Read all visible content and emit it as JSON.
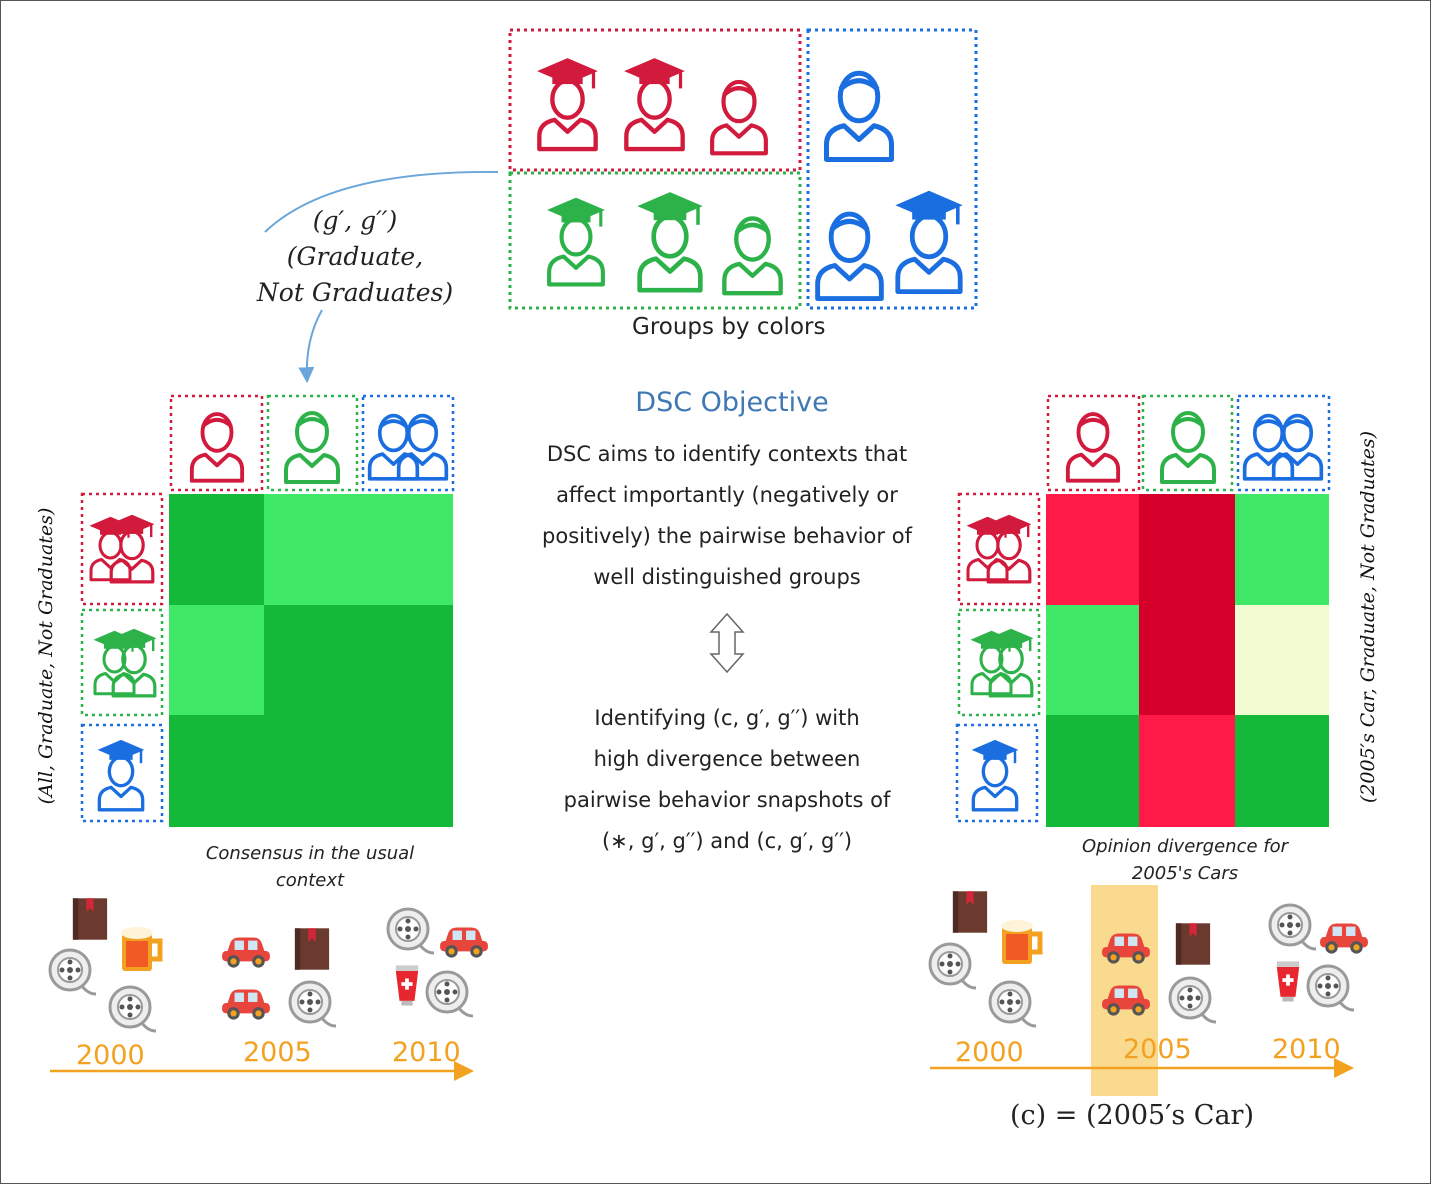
{
  "colors": {
    "red_group": "#d11a3c",
    "green_group": "#2db24a",
    "blue_group": "#1a6ee0",
    "accent_orange": "#f2a220",
    "highlight": "#f9d47a",
    "arrow_blue": "#6aa6d9",
    "title_blue": "#3f78b5"
  },
  "top_groups": {
    "caption": "Groups by colors"
  },
  "pair_label": {
    "line1": "(g′, g′′)",
    "line2": "(Graduate,",
    "line3": "Not Graduates)"
  },
  "left_axis_label": "(All, Graduate, Not Graduates)",
  "right_axis_label": "(2005′s Car, Graduate, Not Graduates)",
  "center": {
    "title": "DSC Objective",
    "desc_lines": [
      "DSC aims to identify contexts that",
      "affect importantly (negatively or",
      "positively) the pairwise behavior of",
      "well distinguished groups"
    ],
    "id_lines": [
      "Identifying (c, g′, g′′) with",
      "high divergence between",
      "pairwise behavior snapshots of",
      "(∗, g′, g′′) and (c, g′, g′′)"
    ]
  },
  "left_caption": [
    "Consensus in the usual",
    "context"
  ],
  "right_caption": [
    "Opinion divergence for",
    "2005's Cars"
  ],
  "timeline_left": [
    "2000",
    "2005",
    "2010"
  ],
  "timeline_right": [
    "2000",
    "2005",
    "2010"
  ],
  "context_label": "(c) = (2005′s Car)",
  "matrix_left": [
    [
      "#14b93a",
      "#3fe866",
      "#3fe866"
    ],
    [
      "#3fe866",
      "#14b93a",
      "#14b93a"
    ],
    [
      "#14b93a",
      "#14b93a",
      "#14b93a"
    ]
  ],
  "matrix_right": [
    [
      "#ff1a47",
      "#d4002b",
      "#3fe866"
    ],
    [
      "#3fe866",
      "#d4002b",
      "#f1fbd2"
    ],
    [
      "#14b93a",
      "#ff1a47",
      "#14b93a"
    ]
  ],
  "icons": {
    "person": "person-icon",
    "graduate": "graduate-icon",
    "book": "book-icon",
    "beer": "beer-icon",
    "film_reel": "film-reel-icon",
    "car": "car-icon",
    "tube": "tube-icon"
  }
}
